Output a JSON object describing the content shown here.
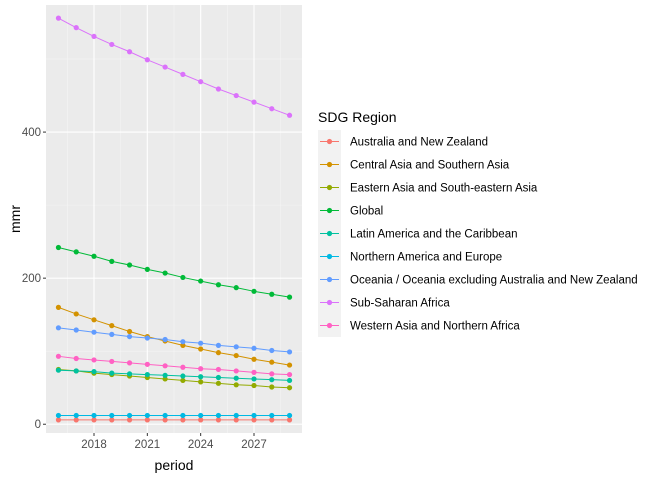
{
  "chart_data": {
    "type": "line",
    "xlabel": "period",
    "ylabel": "mmr",
    "x": [
      2016,
      2017,
      2018,
      2019,
      2020,
      2021,
      2022,
      2023,
      2024,
      2025,
      2026,
      2027,
      2028,
      2029
    ],
    "xlim": [
      2015.3,
      2029.7
    ],
    "ylim": [
      -12,
      574
    ],
    "x_ticks": [
      2018,
      2021,
      2024,
      2027
    ],
    "x_tick_labels": [
      "2018",
      "2021",
      "2024",
      "2027"
    ],
    "y_ticks": [
      0,
      200,
      400
    ],
    "y_tick_labels": [
      "0",
      "200",
      "400"
    ],
    "grid": true,
    "legend": {
      "title": "SDG Region",
      "position": "right"
    },
    "series": [
      {
        "name": "Australia and New Zealand",
        "color": "#F8766D",
        "values": [
          6,
          6,
          6,
          6,
          6,
          6,
          6,
          6,
          6,
          6,
          6,
          6,
          6,
          6
        ]
      },
      {
        "name": "Central Asia and Southern Asia",
        "color": "#D39200",
        "values": [
          160,
          151,
          143,
          135,
          127,
          120,
          114,
          108,
          103,
          98,
          94,
          89,
          85,
          81
        ]
      },
      {
        "name": "Eastern Asia and South-eastern Asia",
        "color": "#93AA00",
        "values": [
          75,
          73,
          70,
          68,
          66,
          64,
          62,
          60,
          58,
          56,
          54,
          53,
          51,
          50
        ]
      },
      {
        "name": "Global",
        "color": "#00BA38",
        "values": [
          242,
          236,
          230,
          223,
          218,
          212,
          207,
          201,
          196,
          191,
          187,
          182,
          178,
          174
        ]
      },
      {
        "name": "Latin America and the Caribbean",
        "color": "#00C19F",
        "values": [
          74,
          73,
          72,
          70,
          69,
          68,
          67,
          66,
          65,
          64,
          63,
          62,
          61,
          60
        ]
      },
      {
        "name": "Northern America and Europe",
        "color": "#00B9E3",
        "values": [
          12,
          12,
          12,
          12,
          12,
          12,
          12,
          12,
          12,
          12,
          12,
          12,
          12,
          12
        ]
      },
      {
        "name": "Oceania / Oceania excluding Australia and New Zealand",
        "color": "#619CFF",
        "values": [
          132,
          129,
          126,
          123,
          120,
          118,
          116,
          113,
          111,
          108,
          106,
          104,
          101,
          99
        ]
      },
      {
        "name": "Sub-Saharan Africa",
        "color": "#DB72FB",
        "values": [
          556,
          543,
          531,
          520,
          510,
          499,
          489,
          479,
          469,
          459,
          450,
          441,
          432,
          423
        ]
      },
      {
        "name": "Western Asia and Northern Africa",
        "color": "#FF61C3",
        "values": [
          93,
          90,
          88,
          86,
          84,
          82,
          80,
          78,
          76,
          75,
          73,
          71,
          69,
          68
        ]
      }
    ]
  }
}
